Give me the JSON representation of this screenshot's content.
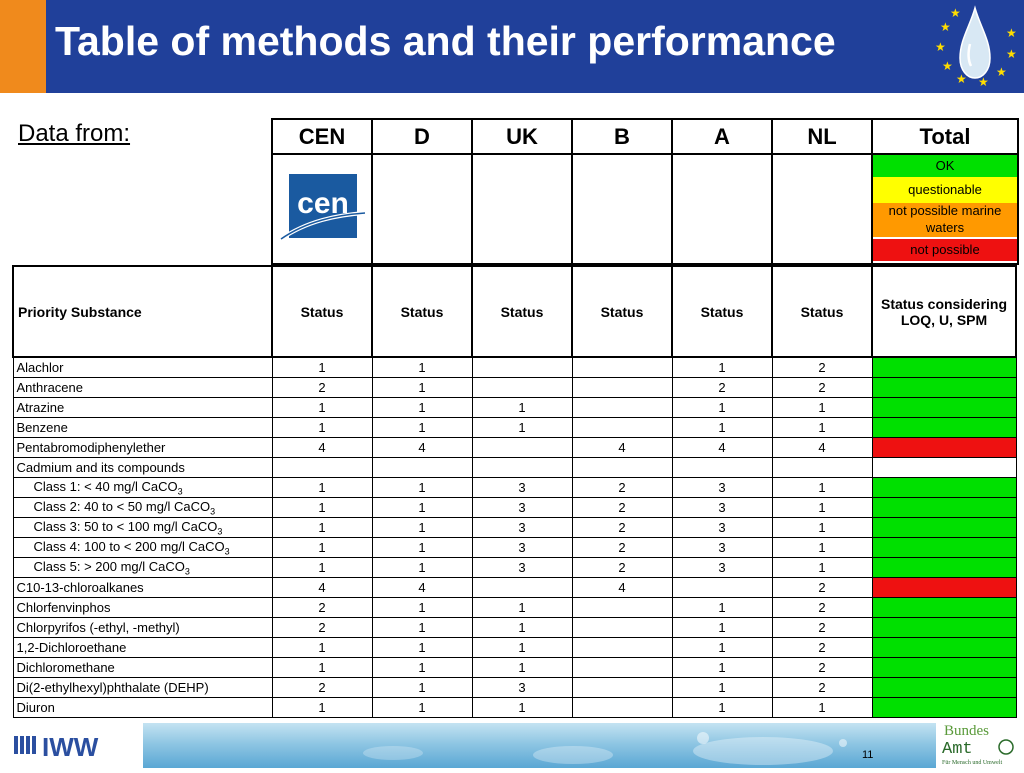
{
  "title": "Table of methods and their performance",
  "data_from_label": "Data from:",
  "sources": [
    "CEN",
    "D",
    "UK",
    "B",
    "A",
    "NL"
  ],
  "total_label": "Total",
  "legend": [
    {
      "label": "OK",
      "color": "#00e000"
    },
    {
      "label": "questionable",
      "color": "#ffff00"
    },
    {
      "label": "not possible marine waters",
      "color": "#ff9900"
    },
    {
      "label": "not possible",
      "color": "#ee1111"
    }
  ],
  "table": {
    "header_substance": "Priority Substance",
    "header_status": "Status",
    "header_total": "Status considering LOQ, U, SPM",
    "rows": [
      {
        "name": "Alachlor",
        "indent": false,
        "vals": [
          "1",
          "1",
          "",
          "",
          "1",
          "2"
        ],
        "total": "green"
      },
      {
        "name": "Anthracene",
        "indent": false,
        "vals": [
          "2",
          "1",
          "",
          "",
          "2",
          "2"
        ],
        "total": "green"
      },
      {
        "name": "Atrazine",
        "indent": false,
        "vals": [
          "1",
          "1",
          "1",
          "",
          "1",
          "1"
        ],
        "total": "green"
      },
      {
        "name": "Benzene",
        "indent": false,
        "vals": [
          "1",
          "1",
          "1",
          "",
          "1",
          "1"
        ],
        "total": "green"
      },
      {
        "name": "Pentabromodiphenylether",
        "indent": false,
        "vals": [
          "4",
          "4",
          "",
          "4",
          "4",
          "4"
        ],
        "total": "red"
      },
      {
        "name": "Cadmium and its compounds",
        "indent": false,
        "vals": [
          "",
          "",
          "",
          "",
          "",
          ""
        ],
        "total": "white"
      },
      {
        "name": "Class 1: < 40 mg/l CaCO",
        "sub": "3",
        "indent": true,
        "vals": [
          "1",
          "1",
          "3",
          "2",
          "3",
          "1"
        ],
        "total": "green"
      },
      {
        "name": "Class 2: 40 to < 50 mg/l CaCO",
        "sub": "3",
        "indent": true,
        "vals": [
          "1",
          "1",
          "3",
          "2",
          "3",
          "1"
        ],
        "total": "green"
      },
      {
        "name": "Class 3: 50 to < 100 mg/l CaCO",
        "sub": "3",
        "indent": true,
        "vals": [
          "1",
          "1",
          "3",
          "2",
          "3",
          "1"
        ],
        "total": "green"
      },
      {
        "name": "Class 4: 100 to < 200 mg/l CaCO",
        "sub": "3",
        "indent": true,
        "vals": [
          "1",
          "1",
          "3",
          "2",
          "3",
          "1"
        ],
        "total": "green"
      },
      {
        "name": "Class 5: > 200 mg/l CaCO",
        "sub": "3",
        "indent": true,
        "vals": [
          "1",
          "1",
          "3",
          "2",
          "3",
          "1"
        ],
        "total": "green"
      },
      {
        "name": "C10-13-chloroalkanes",
        "indent": false,
        "vals": [
          "4",
          "4",
          "",
          "4",
          "",
          "2"
        ],
        "total": "red"
      },
      {
        "name": "Chlorfenvinphos",
        "indent": false,
        "vals": [
          "2",
          "1",
          "1",
          "",
          "1",
          "2"
        ],
        "total": "green"
      },
      {
        "name": "Chlorpyrifos (-ethyl, -methyl)",
        "indent": false,
        "vals": [
          "2",
          "1",
          "1",
          "",
          "1",
          "2"
        ],
        "total": "green"
      },
      {
        "name": "1,2-Dichloroethane",
        "indent": false,
        "vals": [
          "1",
          "1",
          "1",
          "",
          "1",
          "2"
        ],
        "total": "green"
      },
      {
        "name": "Dichloromethane",
        "indent": false,
        "vals": [
          "1",
          "1",
          "1",
          "",
          "1",
          "2"
        ],
        "total": "green"
      },
      {
        "name": "Di(2-ethylhexyl)phthalate (DEHP)",
        "indent": false,
        "vals": [
          "2",
          "1",
          "3",
          "",
          "1",
          "2"
        ],
        "total": "green"
      },
      {
        "name": "Diuron",
        "indent": false,
        "vals": [
          "1",
          "1",
          "1",
          "",
          "1",
          "1"
        ],
        "total": "green"
      }
    ]
  },
  "colors": {
    "green": "#00e000",
    "red": "#ee1111",
    "white": "#ffffff",
    "header_blue": "#20409a",
    "accent_orange": "#f08a1c"
  },
  "footer": {
    "left_logo_text": "IWW",
    "page_number": "11",
    "right_logo_text": [
      "Bundes",
      "Amt",
      "Für Mensch und Umwelt"
    ]
  },
  "cen_logo_text": "cen"
}
